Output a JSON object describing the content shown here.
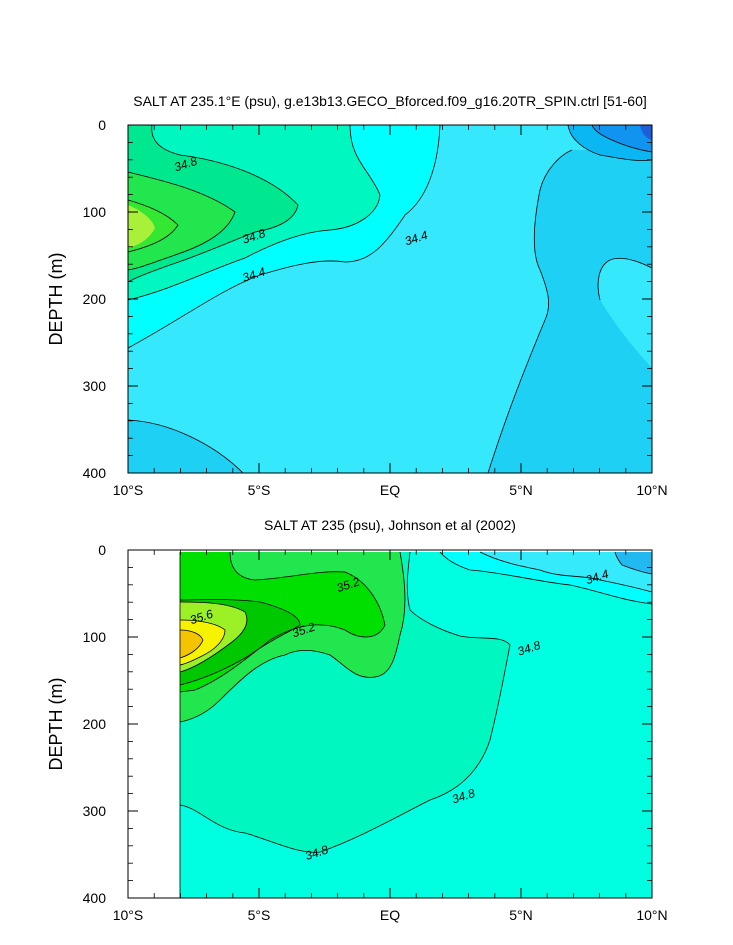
{
  "chart_data": [
    {
      "type": "contour",
      "title": "SALT AT 235.1°E (psu), g.e13b13.GECO_Bforced.f09_g16.20TR_SPIN.ctrl [51-60]",
      "ylabel": "DEPTH (m)",
      "xlim": [
        -10,
        10
      ],
      "ylim": [
        400,
        0
      ],
      "xticks": [
        {
          "value": -10,
          "label": "10°S"
        },
        {
          "value": -5,
          "label": "5°S"
        },
        {
          "value": 0,
          "label": "EQ"
        },
        {
          "value": 5,
          "label": "5°N"
        },
        {
          "value": 10,
          "label": "10°N"
        }
      ],
      "yticks": [
        0,
        100,
        200,
        300,
        400
      ],
      "contour_labels": [
        {
          "x": -7.8,
          "y": 45,
          "text": "34.8"
        },
        {
          "x": -5.2,
          "y": 128,
          "text": "34.8"
        },
        {
          "x": -5.2,
          "y": 172,
          "text": "34.4"
        },
        {
          "x": 1.0,
          "y": 130,
          "text": "34.4"
        }
      ]
    },
    {
      "type": "contour",
      "title": "SALT AT 235 (psu), Johnson et al (2002)",
      "ylabel": "DEPTH (m)",
      "xlim": [
        -10,
        10
      ],
      "ylim": [
        400,
        0
      ],
      "xticks": [
        {
          "value": -10,
          "label": "10°S"
        },
        {
          "value": -5,
          "label": "5°S"
        },
        {
          "value": 0,
          "label": "EQ"
        },
        {
          "value": 5,
          "label": "5°N"
        },
        {
          "value": 10,
          "label": "10°N"
        }
      ],
      "yticks": [
        0,
        100,
        200,
        300,
        400
      ],
      "contour_labels": [
        {
          "x": -1.6,
          "y": 40,
          "text": "35.2"
        },
        {
          "x": -7.2,
          "y": 77,
          "text": "35.6"
        },
        {
          "x": -3.3,
          "y": 92,
          "text": "35.2"
        },
        {
          "x": 5.3,
          "y": 113,
          "text": "34.8"
        },
        {
          "x": 2.8,
          "y": 283,
          "text": "34.8"
        },
        {
          "x": -2.8,
          "y": 348,
          "text": "34.8"
        },
        {
          "x": 7.9,
          "y": 31,
          "text": "34.4"
        }
      ]
    }
  ]
}
